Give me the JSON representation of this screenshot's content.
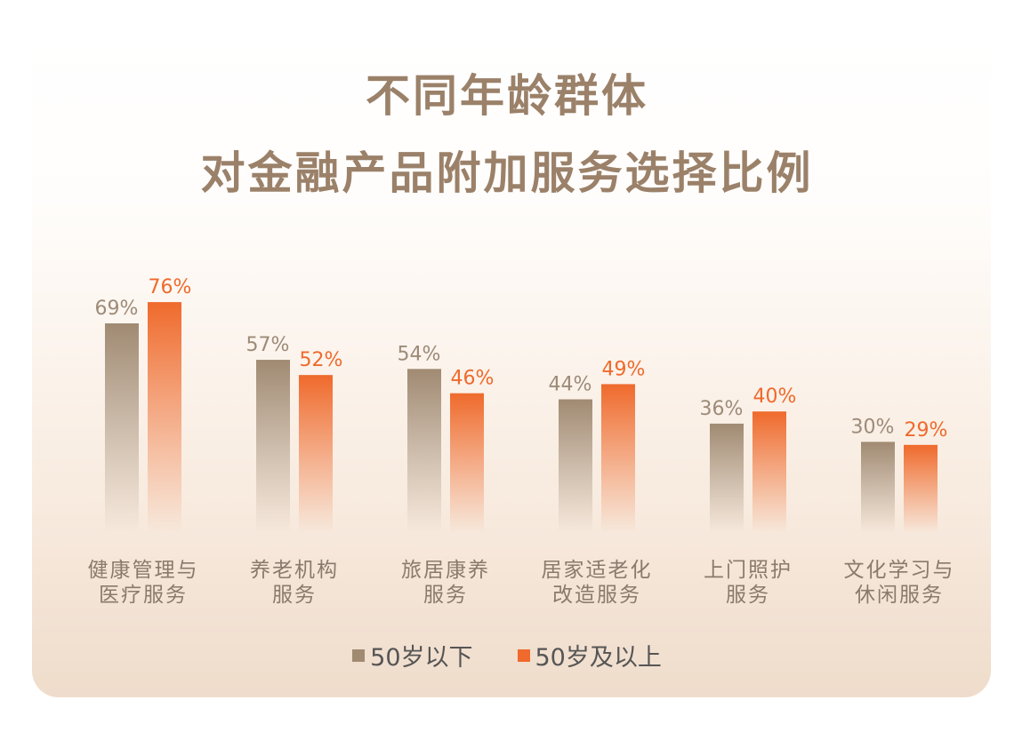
{
  "colors": {
    "series_under50": "#a08a72",
    "series_over50": "#ef6a2c",
    "title": "#9b8169",
    "category_label": "#8a7a6c"
  },
  "chart_data": {
    "type": "bar",
    "title": "不同年龄群体",
    "subtitle": "对金融产品附加服务选择比例",
    "categories": [
      [
        "健康管理与",
        "医疗服务"
      ],
      [
        "养老机构",
        "服务"
      ],
      [
        "旅居康养",
        "服务"
      ],
      [
        "居家适老化",
        "改造服务"
      ],
      [
        "上门照护",
        "服务"
      ],
      [
        "文化学习与",
        "休闲服务"
      ]
    ],
    "series": [
      {
        "name": "50岁以下",
        "values": [
          69,
          57,
          54,
          44,
          36,
          30
        ],
        "labels": [
          "69%",
          "57%",
          "54%",
          "44%",
          "36%",
          "30%"
        ]
      },
      {
        "name": "50岁及以上",
        "values": [
          76,
          52,
          46,
          49,
          40,
          29
        ],
        "labels": [
          "76%",
          "52%",
          "46%",
          "49%",
          "40%",
          "29%"
        ]
      }
    ],
    "unit": "%",
    "legend_position": "bottom-center",
    "grid": false,
    "ylim": [
      0,
      100
    ]
  }
}
